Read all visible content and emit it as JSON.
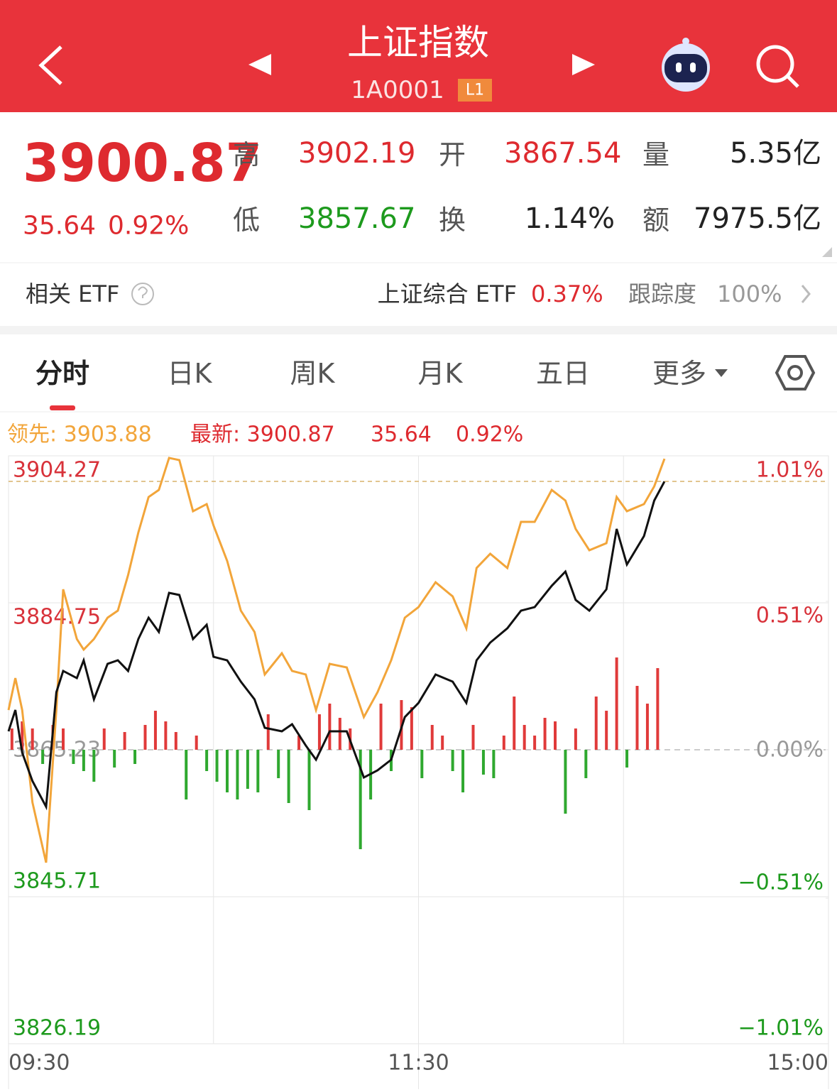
{
  "header": {
    "title": "上证指数",
    "code": "1A0001",
    "badge": "L1"
  },
  "quote": {
    "price": "3900.87",
    "change": "35.64",
    "change_pct": "0.92%",
    "fields": [
      {
        "label": "高",
        "value": "3902.19"
      },
      {
        "label": "开",
        "value": "3867.54"
      },
      {
        "label": "量",
        "value": "5.35亿"
      },
      {
        "label": "低",
        "value": "3857.67"
      },
      {
        "label": "换",
        "value": "1.14%"
      },
      {
        "label": "额",
        "value": "7975.5亿"
      }
    ]
  },
  "etf": {
    "label": "相关 ETF",
    "name": "上证综合 ETF",
    "change": "0.37%",
    "tracking_label": "跟踪度",
    "tracking": "100%"
  },
  "tabs": [
    "分时",
    "日K",
    "周K",
    "月K",
    "五日",
    "更多"
  ],
  "chart_data": {
    "type": "line",
    "x": [
      0,
      2,
      4,
      7,
      11,
      14,
      16,
      20,
      22,
      25,
      29,
      32,
      35,
      38,
      41,
      44,
      47,
      50,
      54,
      58,
      60,
      64,
      68,
      72,
      75,
      80,
      83,
      87,
      90,
      94,
      99,
      104,
      108,
      112,
      116,
      120,
      125,
      130,
      134,
      137,
      141,
      146,
      150,
      154,
      159,
      163,
      166,
      170,
      175,
      178,
      181,
      186,
      189,
      192
    ],
    "xlim": [
      0,
      240
    ],
    "xticks": [
      {
        "value": 0,
        "label": "09:30"
      },
      {
        "value": 120,
        "label": "11:30"
      },
      {
        "value": 240,
        "label": "15:00"
      }
    ],
    "xgrid": [
      60,
      180
    ],
    "ylim": [
      3826.19,
      3904.27
    ],
    "yticks": [
      3826.19,
      3845.71,
      3865.23,
      3884.75,
      3904.27
    ],
    "y2lim": [
      -1.01,
      1.01
    ],
    "y2ticks": [
      {
        "value": -1.01,
        "label": "−1.01%"
      },
      {
        "value": -0.51,
        "label": "−0.51%"
      },
      {
        "value": 0,
        "label": "0.00%"
      },
      {
        "value": 0.51,
        "label": "0.51%"
      },
      {
        "value": 1.01,
        "label": "1.01%"
      }
    ],
    "series": [
      {
        "name": "领先: 3903.88",
        "color": "#f2a53a",
        "values": [
          3870.51,
          3874.75,
          3870.51,
          3858.25,
          3850.24,
          3870.51,
          3886.54,
          3879.94,
          3878.53,
          3879.94,
          3882.77,
          3883.71,
          3888.43,
          3894.09,
          3898.8,
          3899.74,
          3903.99,
          3903.7,
          3896.91,
          3897.86,
          3895.03,
          3890.31,
          3883.71,
          3880.88,
          3875.23,
          3878.05,
          3875.7,
          3875.23,
          3870.51,
          3876.64,
          3876.17,
          3869.57,
          3872.87,
          3877.11,
          3882.77,
          3884.18,
          3887.48,
          3885.6,
          3881.36,
          3889.37,
          3891.26,
          3889.37,
          3895.5,
          3895.5,
          3899.74,
          3898.33,
          3894.56,
          3891.73,
          3892.67,
          3898.8,
          3896.91,
          3897.86,
          3900.22,
          3903.88
        ]
      },
      {
        "name": "最新: 3900.87",
        "color": "#111111",
        "values": [
          3867.68,
          3870.51,
          3864.85,
          3861.08,
          3857.67,
          3872.87,
          3875.7,
          3874.75,
          3877.11,
          3871.93,
          3876.64,
          3877.11,
          3875.7,
          3879.94,
          3882.77,
          3880.88,
          3886.07,
          3885.79,
          3879.94,
          3881.83,
          3877.58,
          3877.11,
          3874.28,
          3871.93,
          3868.15,
          3867.68,
          3868.62,
          3865.8,
          3863.91,
          3867.68,
          3867.68,
          3861.55,
          3862.5,
          3863.91,
          3869.57,
          3871.45,
          3875.23,
          3874.28,
          3871.45,
          3877.11,
          3879.47,
          3881.36,
          3883.71,
          3884.18,
          3887.01,
          3888.9,
          3885.13,
          3883.71,
          3886.54,
          3894.56,
          3889.84,
          3893.61,
          3898.33,
          3900.87
        ]
      }
    ],
    "change": "35.64",
    "change_pct": "0.92%",
    "bar_x": [
      1,
      4,
      7,
      10,
      13,
      16,
      19,
      22,
      25,
      28,
      31,
      34,
      37,
      40,
      43,
      46,
      49,
      52,
      55,
      58,
      61,
      64,
      67,
      70,
      73,
      76,
      79,
      82,
      85,
      88,
      91,
      94,
      97,
      100,
      103,
      106,
      109,
      112,
      115,
      118,
      121,
      124,
      127,
      130,
      133,
      136,
      139,
      142,
      145,
      148,
      151,
      154,
      157,
      160,
      163,
      166,
      169,
      172,
      175,
      178,
      181,
      184,
      187,
      190
    ],
    "bar_values": [
      30,
      40,
      30,
      -20,
      35,
      30,
      -20,
      -30,
      -45,
      30,
      -25,
      25,
      -20,
      35,
      55,
      40,
      25,
      -70,
      20,
      -30,
      -45,
      -60,
      -70,
      -55,
      -60,
      50,
      -40,
      -75,
      20,
      -85,
      50,
      65,
      45,
      30,
      -140,
      -70,
      65,
      -30,
      70,
      60,
      -40,
      35,
      20,
      -30,
      -60,
      35,
      -35,
      -40,
      20,
      75,
      35,
      20,
      45,
      40,
      -90,
      30,
      -40,
      75,
      55,
      130,
      -25,
      90,
      65,
      115
    ],
    "bar_ylim": [
      -414,
      414
    ],
    "up_color": "#e03a3a",
    "down_color": "#2fa82f"
  }
}
